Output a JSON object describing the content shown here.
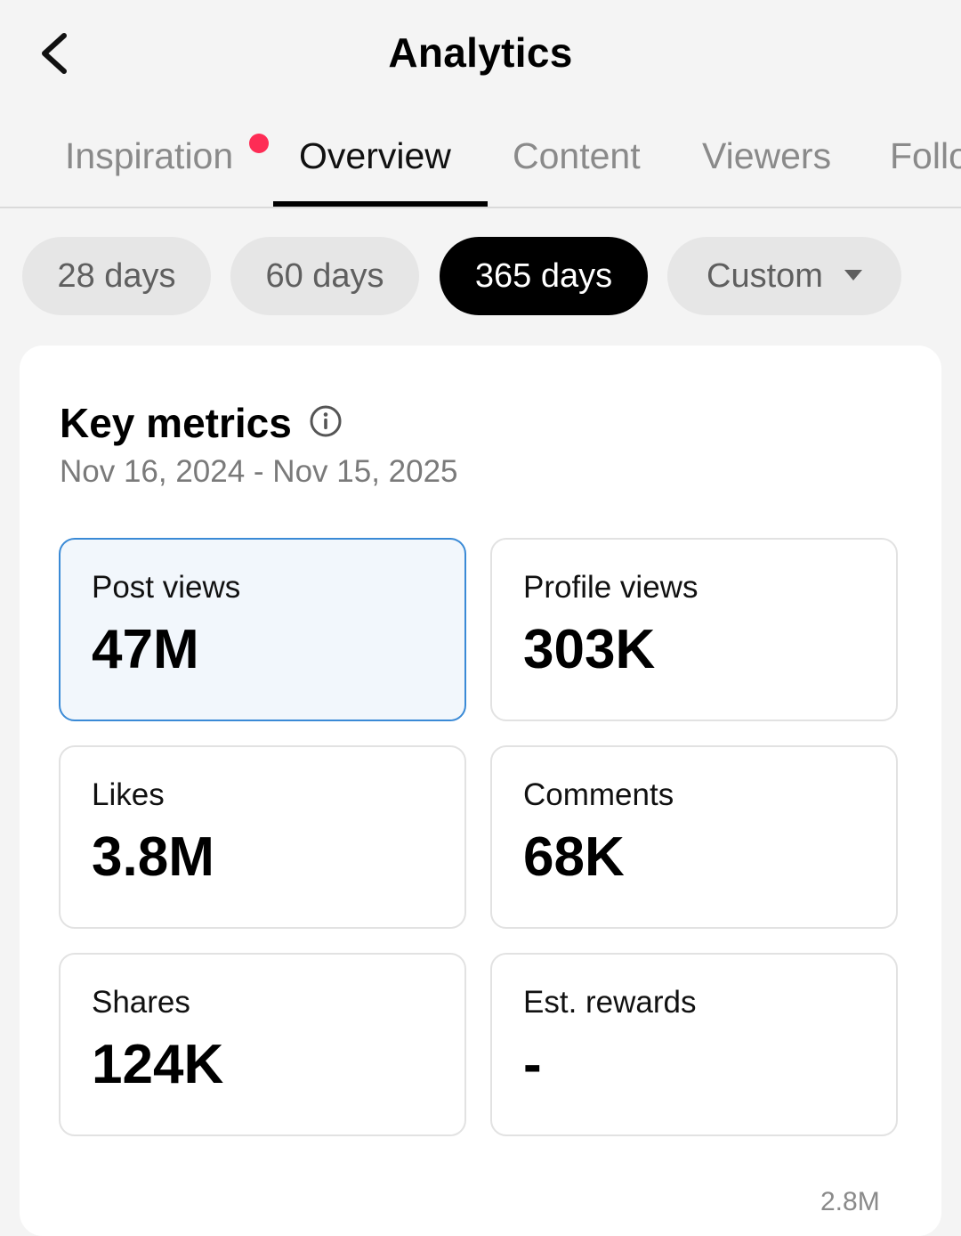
{
  "header": {
    "title": "Analytics",
    "back_icon": "chevron-left-icon"
  },
  "tabs": [
    {
      "label": "Inspiration",
      "has_notification": true
    },
    {
      "label": "Overview",
      "active": true
    },
    {
      "label": "Content"
    },
    {
      "label": "Viewers"
    },
    {
      "label": "Follo"
    }
  ],
  "colors": {
    "notification_dot": "#fe2c55",
    "selected_chip_bg": "#000000",
    "selected_metric_border": "#3a8ad6",
    "selected_metric_bg": "#f2f7fc"
  },
  "filters": [
    {
      "label": "28 days"
    },
    {
      "label": "60 days"
    },
    {
      "label": "365 days",
      "selected": true
    },
    {
      "label": "Custom",
      "has_dropdown": true
    }
  ],
  "key_metrics": {
    "title": "Key metrics",
    "info_icon": "info-icon",
    "date_range": "Nov 16, 2024 - Nov 15, 2025",
    "metrics": [
      {
        "label": "Post views",
        "value": "47M",
        "selected": true
      },
      {
        "label": "Profile views",
        "value": "303K"
      },
      {
        "label": "Likes",
        "value": "3.8M"
      },
      {
        "label": "Comments",
        "value": "68K"
      },
      {
        "label": "Shares",
        "value": "124K"
      },
      {
        "label": "Est. rewards",
        "value": "-"
      }
    ],
    "chart_axis_label_partial": "2.8M"
  }
}
